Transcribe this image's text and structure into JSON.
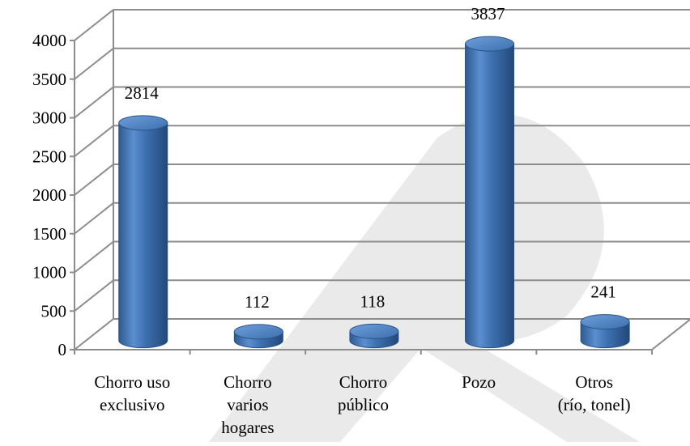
{
  "chart_data": {
    "type": "bar",
    "bar_style": "3d-cylinder",
    "title": "",
    "xlabel": "",
    "ylabel": "",
    "categories": [
      [
        "Chorro uso",
        "exclusivo"
      ],
      [
        "Chorro",
        "varios",
        "hogares"
      ],
      [
        "Chorro",
        "público"
      ],
      [
        "Pozo"
      ],
      [
        "Otros",
        "(río, tonel)"
      ]
    ],
    "values": [
      2814,
      112,
      118,
      3837,
      241
    ],
    "data_labels": [
      "2814",
      "112",
      "118",
      "3837",
      "241"
    ],
    "yticks": [
      0,
      500,
      1000,
      1500,
      2000,
      2500,
      3000,
      3500,
      4000
    ],
    "ytick_labels": [
      "0",
      "500",
      "1000",
      "1500",
      "2000",
      "2500",
      "3000",
      "3500",
      "4000"
    ],
    "ylim": [
      0,
      4000
    ],
    "grid": true,
    "legend": "none",
    "bar_color": "#4A7EBB",
    "grid_color": "#8C8C8C",
    "watermark_color": "#D9D9D9"
  }
}
